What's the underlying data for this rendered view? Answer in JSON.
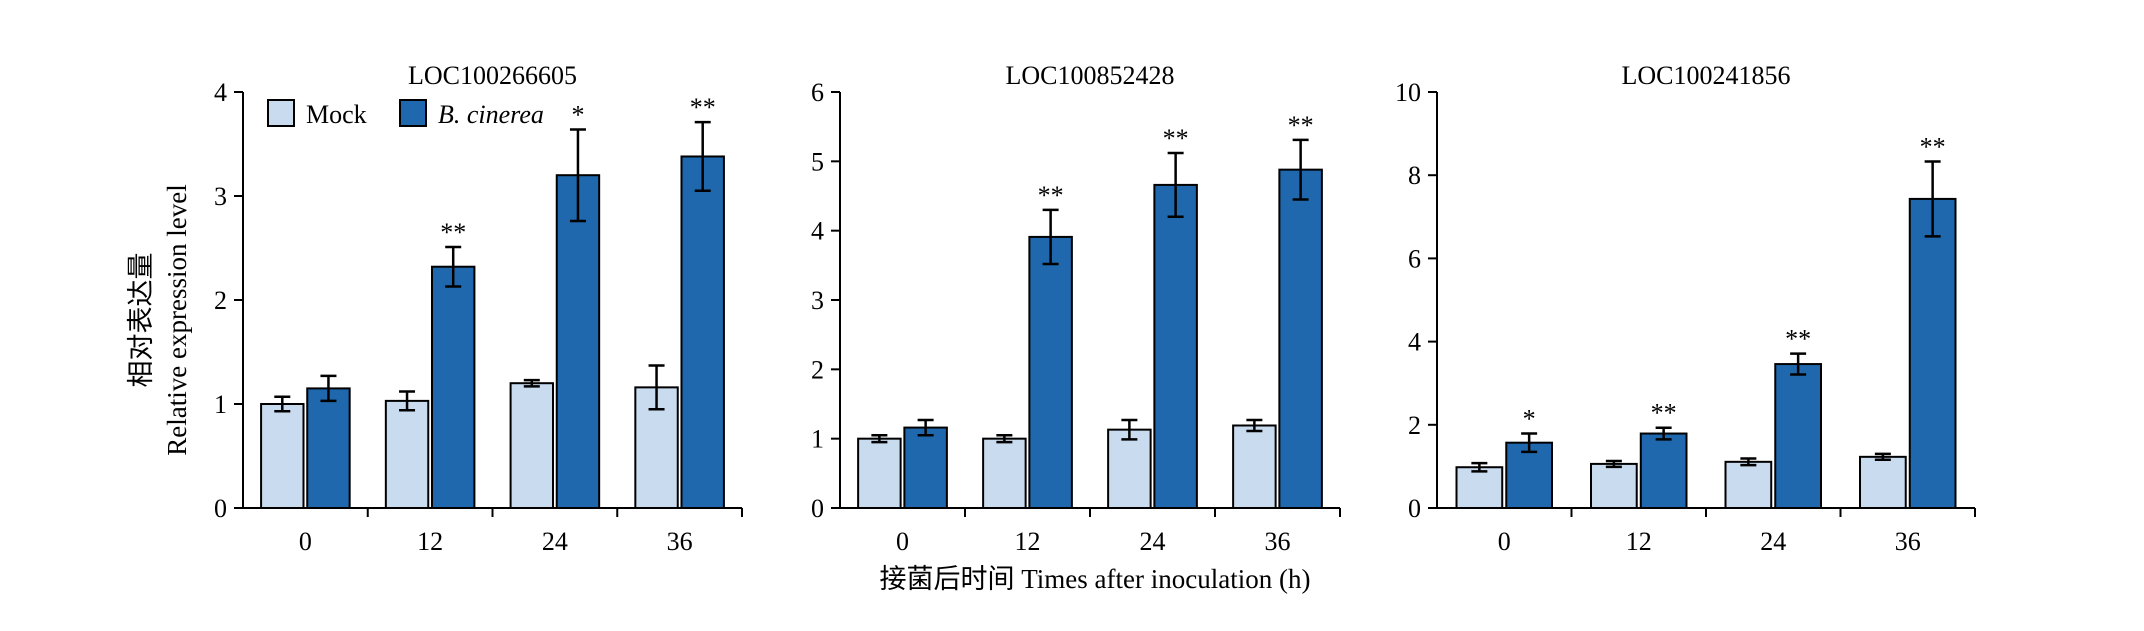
{
  "figure": {
    "ylabel_cn": "相对表达量",
    "ylabel_en": "Relative expression level",
    "xlabel": "接菌后时间 Times after inoculation (h)",
    "legend": [
      "Mock",
      "B. cinerea"
    ]
  },
  "colors": {
    "mock": "#c9dbef",
    "b_cinerea": "#1f68ad",
    "edge": "#000000"
  },
  "chart_data": [
    {
      "type": "bar",
      "title": "LOC100266605",
      "categories": [
        "0",
        "12",
        "24",
        "36"
      ],
      "ylim": [
        0,
        4
      ],
      "yticks": [
        0,
        1,
        2,
        3,
        4
      ],
      "series": [
        {
          "name": "Mock",
          "values": [
            1.0,
            1.03,
            1.2,
            1.16
          ],
          "errors": [
            0.07,
            0.09,
            0.03,
            0.21
          ]
        },
        {
          "name": "B. cinerea",
          "values": [
            1.15,
            2.32,
            3.2,
            3.38
          ],
          "errors": [
            0.12,
            0.19,
            0.44,
            0.33
          ]
        }
      ],
      "significance": [
        "",
        "**",
        "*",
        "**"
      ]
    },
    {
      "type": "bar",
      "title": "LOC100852428",
      "categories": [
        "0",
        "12",
        "24",
        "36"
      ],
      "ylim": [
        0,
        6
      ],
      "yticks": [
        0,
        1,
        2,
        3,
        4,
        5,
        6
      ],
      "series": [
        {
          "name": "Mock",
          "values": [
            1.0,
            1.0,
            1.13,
            1.19
          ],
          "errors": [
            0.05,
            0.05,
            0.14,
            0.08
          ]
        },
        {
          "name": "B. cinerea",
          "values": [
            1.16,
            3.91,
            4.66,
            4.88
          ],
          "errors": [
            0.11,
            0.39,
            0.46,
            0.43
          ]
        }
      ],
      "significance": [
        "",
        "**",
        "**",
        "**"
      ]
    },
    {
      "type": "bar",
      "title": "LOC100241856",
      "categories": [
        "0",
        "12",
        "24",
        "36"
      ],
      "ylim": [
        0,
        10
      ],
      "yticks": [
        0,
        2,
        4,
        6,
        8,
        10
      ],
      "series": [
        {
          "name": "Mock",
          "values": [
            0.98,
            1.06,
            1.11,
            1.23
          ],
          "errors": [
            0.1,
            0.07,
            0.08,
            0.07
          ]
        },
        {
          "name": "B. cinerea",
          "values": [
            1.57,
            1.79,
            3.46,
            7.43
          ],
          "errors": [
            0.22,
            0.14,
            0.25,
            0.9
          ]
        }
      ],
      "significance": [
        "*",
        "**",
        "**",
        "**"
      ]
    }
  ]
}
